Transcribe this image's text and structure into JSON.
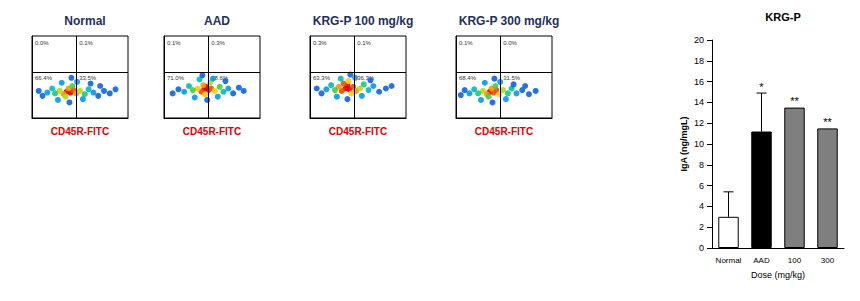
{
  "chart_data": [
    {
      "type": "scatter",
      "title": "Normal",
      "x_label": "CD45R-FITC",
      "xlim": [
        0,
        10
      ],
      "ylim": [
        0,
        10
      ],
      "tick_labels": false,
      "gates": {
        "x": 4.6,
        "y": 5.6
      },
      "quadrant_labels": {
        "upper_left": "0.0%",
        "upper_right": "0.1%",
        "lower_left": "66.4%",
        "lower_right": "33.5%"
      },
      "density_range": [
        0,
        10
      ],
      "points": [
        [
          3.6,
          3.2,
          10
        ],
        [
          4.0,
          3.1,
          10
        ],
        [
          4.3,
          3.4,
          9
        ],
        [
          3.3,
          2.9,
          8
        ],
        [
          4.6,
          3.0,
          8
        ],
        [
          3.8,
          3.6,
          8
        ],
        [
          2.9,
          3.3,
          6
        ],
        [
          5.0,
          3.3,
          6
        ],
        [
          3.5,
          2.6,
          6
        ],
        [
          4.2,
          3.9,
          5
        ],
        [
          2.4,
          3.0,
          4
        ],
        [
          5.5,
          2.9,
          4
        ],
        [
          5.9,
          3.5,
          3
        ],
        [
          2.1,
          3.6,
          3
        ],
        [
          6.4,
          3.1,
          2
        ],
        [
          6.9,
          2.7,
          1
        ],
        [
          7.5,
          3.3,
          1
        ],
        [
          8.1,
          3.0,
          1
        ],
        [
          1.6,
          3.1,
          2
        ],
        [
          1.1,
          2.7,
          1
        ],
        [
          0.7,
          3.3,
          1
        ],
        [
          3.1,
          4.3,
          2
        ],
        [
          4.7,
          4.4,
          2
        ],
        [
          5.3,
          2.3,
          2
        ],
        [
          2.7,
          2.2,
          2
        ],
        [
          6.1,
          4.2,
          1
        ],
        [
          7.1,
          3.9,
          1
        ],
        [
          3.9,
          1.9,
          1
        ],
        [
          8.7,
          3.5,
          1
        ],
        [
          4.1,
          4.9,
          1
        ]
      ]
    },
    {
      "type": "scatter",
      "title": "AAD",
      "x_label": "CD45R-FITC",
      "xlim": [
        0,
        10
      ],
      "ylim": [
        0,
        10
      ],
      "tick_labels": false,
      "gates": {
        "x": 4.6,
        "y": 5.6
      },
      "quadrant_labels": {
        "upper_left": "0.1%",
        "upper_right": "0.3%",
        "lower_left": "71.0%",
        "lower_right": "28.6%"
      },
      "density_range": [
        0,
        10
      ],
      "points": [
        [
          4.2,
          3.5,
          10
        ],
        [
          4.6,
          3.4,
          10
        ],
        [
          4.4,
          3.8,
          10
        ],
        [
          3.9,
          3.2,
          9
        ],
        [
          4.9,
          3.6,
          9
        ],
        [
          4.1,
          4.0,
          8
        ],
        [
          3.5,
          3.6,
          7
        ],
        [
          5.3,
          3.3,
          7
        ],
        [
          4.3,
          2.9,
          7
        ],
        [
          4.8,
          4.3,
          6
        ],
        [
          3.0,
          3.4,
          5
        ],
        [
          5.8,
          3.8,
          5
        ],
        [
          6.2,
          3.2,
          3
        ],
        [
          2.6,
          3.9,
          3
        ],
        [
          6.7,
          3.6,
          2
        ],
        [
          7.2,
          3.0,
          1
        ],
        [
          7.8,
          3.7,
          1
        ],
        [
          2.1,
          3.2,
          2
        ],
        [
          1.5,
          3.5,
          1
        ],
        [
          0.9,
          3.0,
          1
        ],
        [
          3.7,
          4.7,
          3
        ],
        [
          5.1,
          4.8,
          2
        ],
        [
          5.6,
          2.6,
          2
        ],
        [
          3.2,
          2.5,
          2
        ],
        [
          6.4,
          4.5,
          1
        ],
        [
          4.5,
          2.2,
          1
        ],
        [
          8.3,
          3.3,
          1
        ],
        [
          4.0,
          5.2,
          1
        ]
      ]
    },
    {
      "type": "scatter",
      "title": "KRG-P 100 mg/kg",
      "x_label": "CD45R-FITC",
      "xlim": [
        0,
        10
      ],
      "ylim": [
        0,
        10
      ],
      "tick_labels": false,
      "gates": {
        "x": 4.6,
        "y": 5.6
      },
      "quadrant_labels": {
        "upper_left": "0.3%",
        "upper_right": "0.1%",
        "lower_left": "63.3%",
        "lower_right": "36.3%"
      },
      "density_range": [
        0,
        10
      ],
      "points": [
        [
          3.7,
          3.6,
          10
        ],
        [
          4.1,
          3.5,
          10
        ],
        [
          3.9,
          4.0,
          10
        ],
        [
          3.3,
          3.3,
          9
        ],
        [
          4.5,
          3.8,
          9
        ],
        [
          3.5,
          4.2,
          9
        ],
        [
          4.8,
          3.3,
          8
        ],
        [
          3.0,
          3.8,
          8
        ],
        [
          4.3,
          3.0,
          7
        ],
        [
          4.0,
          4.5,
          7
        ],
        [
          2.6,
          3.4,
          5
        ],
        [
          5.2,
          3.6,
          6
        ],
        [
          5.6,
          4.1,
          4
        ],
        [
          2.2,
          4.0,
          3
        ],
        [
          6.1,
          3.4,
          3
        ],
        [
          6.6,
          3.9,
          2
        ],
        [
          7.2,
          3.2,
          1
        ],
        [
          7.9,
          3.6,
          1
        ],
        [
          1.7,
          3.5,
          2
        ],
        [
          1.2,
          3.0,
          1
        ],
        [
          0.7,
          3.6,
          1
        ],
        [
          3.2,
          4.8,
          3
        ],
        [
          4.7,
          4.9,
          2
        ],
        [
          5.4,
          2.7,
          2
        ],
        [
          2.8,
          2.6,
          2
        ],
        [
          6.3,
          4.6,
          1
        ],
        [
          3.9,
          2.3,
          1
        ],
        [
          8.5,
          3.9,
          1
        ],
        [
          4.2,
          5.3,
          1
        ]
      ]
    },
    {
      "type": "scatter",
      "title": "KRG-P 300 mg/kg",
      "x_label": "CD45R-FITC",
      "xlim": [
        0,
        10
      ],
      "ylim": [
        0,
        10
      ],
      "tick_labels": false,
      "gates": {
        "x": 4.6,
        "y": 5.6
      },
      "quadrant_labels": {
        "upper_left": "0.1%",
        "upper_right": "0.0%",
        "lower_left": "68.4%",
        "lower_right": "31.5%"
      },
      "density_range": [
        0,
        10
      ],
      "points": [
        [
          3.5,
          3.2,
          10
        ],
        [
          3.9,
          3.1,
          9
        ],
        [
          4.2,
          3.4,
          9
        ],
        [
          3.2,
          2.9,
          8
        ],
        [
          4.5,
          2.9,
          7
        ],
        [
          3.7,
          3.6,
          8
        ],
        [
          2.8,
          3.3,
          6
        ],
        [
          4.9,
          3.4,
          6
        ],
        [
          3.4,
          2.6,
          5
        ],
        [
          4.1,
          3.9,
          5
        ],
        [
          2.3,
          3.0,
          4
        ],
        [
          5.4,
          3.0,
          4
        ],
        [
          5.8,
          3.6,
          3
        ],
        [
          1.9,
          3.5,
          3
        ],
        [
          6.3,
          3.0,
          2
        ],
        [
          6.9,
          3.4,
          1
        ],
        [
          7.6,
          2.9,
          1
        ],
        [
          8.3,
          3.3,
          1
        ],
        [
          1.4,
          3.0,
          2
        ],
        [
          0.9,
          3.4,
          1
        ],
        [
          0.5,
          2.8,
          1
        ],
        [
          3.0,
          4.3,
          2
        ],
        [
          4.6,
          4.4,
          2
        ],
        [
          5.2,
          2.3,
          2
        ],
        [
          2.6,
          2.2,
          2
        ],
        [
          6.0,
          4.1,
          1
        ],
        [
          7.2,
          3.9,
          1
        ],
        [
          3.8,
          1.9,
          1
        ],
        [
          4.0,
          4.8,
          1
        ]
      ]
    },
    {
      "type": "bar",
      "title": "KRG-P",
      "x_label": "Dose (mg/kg)",
      "y_label": "IgA (ng/mgL)",
      "categories": [
        "Normal",
        "AAD",
        "100",
        "300"
      ],
      "values": [
        3.0,
        11.2,
        13.5,
        11.5
      ],
      "errors": [
        2.4,
        3.7,
        0,
        0
      ],
      "significance": [
        null,
        "*",
        "**",
        "**"
      ],
      "colors": [
        "#ffffff",
        "#000000",
        "#7f7f7f",
        "#7f7f7f"
      ],
      "ylim": [
        0,
        20
      ],
      "yticks": [
        0,
        2,
        4,
        6,
        8,
        10,
        12,
        14,
        16,
        18,
        20
      ],
      "grid": false
    }
  ]
}
